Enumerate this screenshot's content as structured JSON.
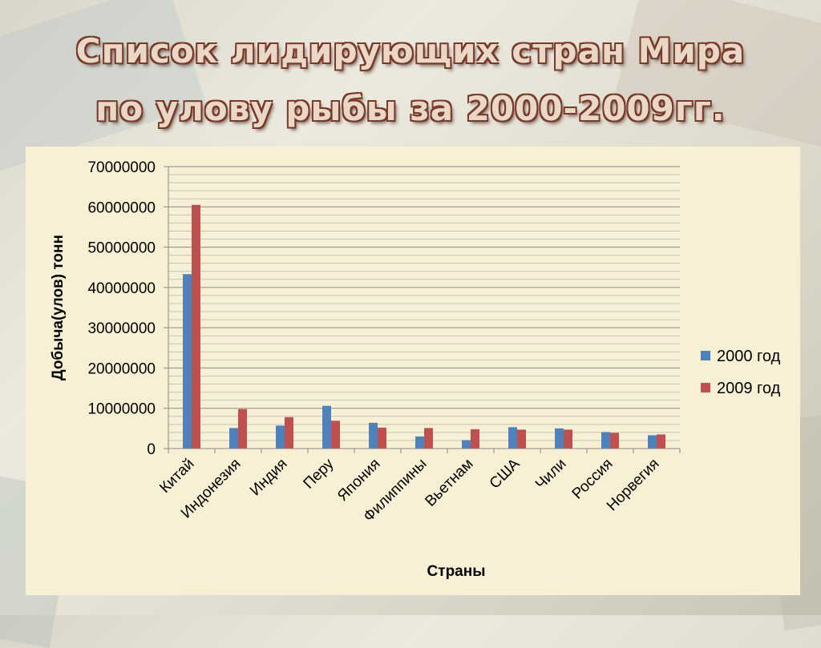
{
  "title": {
    "line1": "Список лидирующих стран Мира",
    "line2": "по улову рыбы за 2000-2009гг."
  },
  "chart_data": {
    "type": "bar",
    "xlabel": "Страны",
    "ylabel": "Добыча(улов) тонн",
    "ylim": [
      0,
      70000000
    ],
    "yticks": [
      "0",
      "10000000",
      "20000000",
      "30000000",
      "40000000",
      "50000000",
      "60000000",
      "70000000"
    ],
    "grid": true,
    "legend_position": "right",
    "categories": [
      "Китай",
      "Индонезия",
      "Индия",
      "Перу",
      "Япония",
      "Филиппины",
      "Вьетнам",
      "США",
      "Чили",
      "Россия",
      "Норвегия"
    ],
    "series": [
      {
        "name": "2000 год",
        "color": "#4f81bd",
        "values": [
          43300000,
          5100000,
          5700000,
          10600000,
          6400000,
          3000000,
          2100000,
          5300000,
          5000000,
          4100000,
          3300000
        ]
      },
      {
        "name": "2009 год",
        "color": "#c0504d",
        "values": [
          60500000,
          9800000,
          7800000,
          6900000,
          5200000,
          5100000,
          4800000,
          4700000,
          4700000,
          3900000,
          3500000
        ]
      }
    ]
  }
}
